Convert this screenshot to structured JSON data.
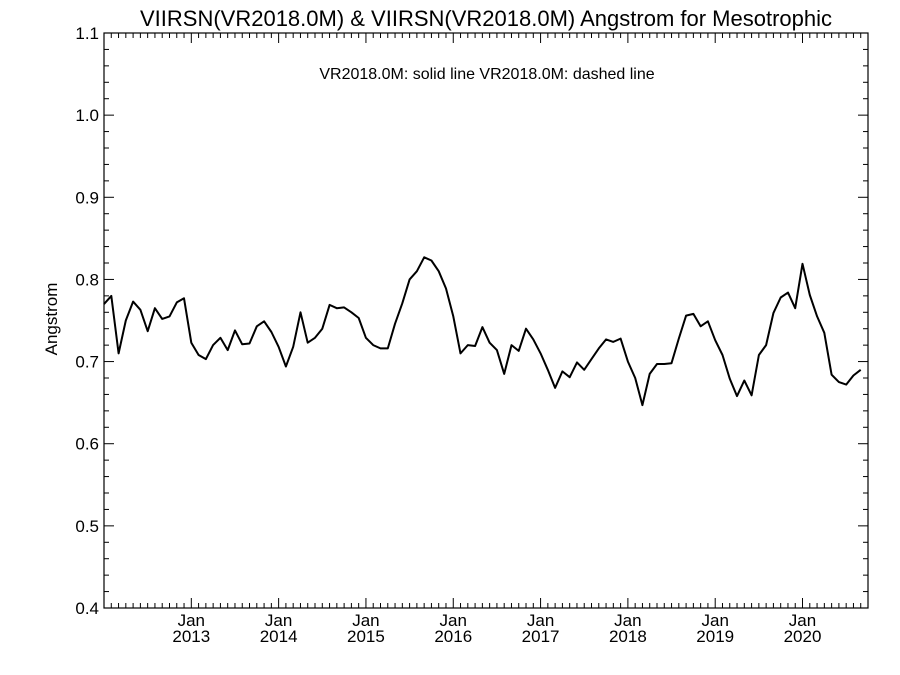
{
  "chart_data": {
    "type": "line",
    "title": "VIIRSN(VR2018.0M) & VIIRSN(VR2018.0M)  Angstrom for Mesotrophic",
    "annotation": "VR2018.0M: solid line   VR2018.0M: dashed line",
    "xlabel": "",
    "ylabel": "Angstrom",
    "ylim": [
      0.4,
      1.1
    ],
    "yticks": [
      "0.4",
      "0.5",
      "0.6",
      "0.7",
      "0.8",
      "0.9",
      "1.0",
      "1.1"
    ],
    "xlim": [
      "2012-01",
      "2020-10"
    ],
    "xticks": [
      {
        "month": "Jan",
        "year": "2013"
      },
      {
        "month": "Jan",
        "year": "2014"
      },
      {
        "month": "Jan",
        "year": "2015"
      },
      {
        "month": "Jan",
        "year": "2016"
      },
      {
        "month": "Jan",
        "year": "2017"
      },
      {
        "month": "Jan",
        "year": "2018"
      },
      {
        "month": "Jan",
        "year": "2019"
      },
      {
        "month": "Jan",
        "year": "2020"
      }
    ],
    "grid": false,
    "series": [
      {
        "style": "solid",
        "color": "#000000",
        "start": "2012-01",
        "values": [
          0.77,
          0.78,
          0.71,
          0.75,
          0.773,
          0.763,
          0.737,
          0.765,
          0.752,
          0.755,
          0.772,
          0.777,
          0.723,
          0.708,
          0.703,
          0.72,
          0.729,
          0.714,
          0.738,
          0.721,
          0.722,
          0.743,
          0.749,
          0.736,
          0.718,
          0.694,
          0.718,
          0.76,
          0.723,
          0.729,
          0.74,
          0.769,
          0.765,
          0.766,
          0.76,
          0.753,
          0.729,
          0.72,
          0.716,
          0.716,
          0.746,
          0.771,
          0.8,
          0.81,
          0.827,
          0.823,
          0.81,
          0.789,
          0.755,
          0.71,
          0.72,
          0.719,
          0.742,
          0.723,
          0.714,
          0.685,
          0.72,
          0.713,
          0.74,
          0.727,
          0.71,
          0.69,
          0.668,
          0.688,
          0.681,
          0.699,
          0.69,
          0.703,
          0.716,
          0.727,
          0.724,
          0.728,
          0.7,
          0.68,
          0.647,
          0.685,
          0.697,
          0.697,
          0.698,
          0.728,
          0.756,
          0.758,
          0.743,
          0.749,
          0.726,
          0.708,
          0.679,
          0.658,
          0.677,
          0.659,
          0.708,
          0.72,
          0.759,
          0.778,
          0.784,
          0.765,
          0.819,
          0.781,
          0.755,
          0.735,
          0.684,
          0.675,
          0.672,
          0.683,
          0.69
        ]
      }
    ]
  }
}
